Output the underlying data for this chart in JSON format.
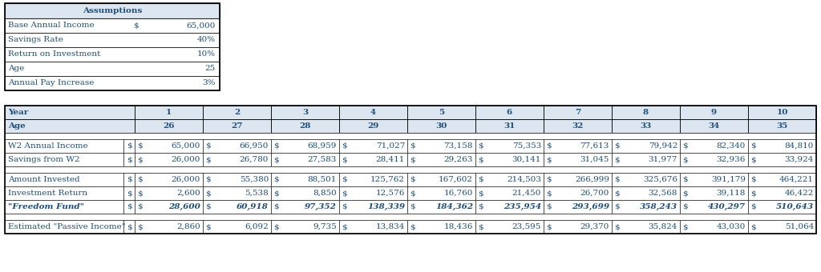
{
  "assumptions_title": "Assumptions",
  "assumptions": [
    [
      "Base Annual Income",
      "$",
      "65,000"
    ],
    [
      "Savings Rate",
      "",
      "40%"
    ],
    [
      "Return on Investment",
      "",
      "10%"
    ],
    [
      "Age",
      "",
      "25"
    ],
    [
      "Annual Pay Increase",
      "",
      "3%"
    ]
  ],
  "header_bg": "#dce6f1",
  "text_color": "#1f4e79",
  "border_color": "#000000",
  "years": [
    "1",
    "2",
    "3",
    "4",
    "5",
    "6",
    "7",
    "8",
    "9",
    "10"
  ],
  "ages": [
    "26",
    "27",
    "28",
    "29",
    "30",
    "31",
    "32",
    "33",
    "34",
    "35"
  ],
  "rows": [
    {
      "label": "W2 Annual Income",
      "bold": false,
      "italic": false,
      "values": [
        "65,000",
        "66,950",
        "68,959",
        "71,027",
        "73,158",
        "75,353",
        "77,613",
        "79,942",
        "82,340",
        "84,810"
      ]
    },
    {
      "label": "Savings from W2",
      "bold": false,
      "italic": false,
      "values": [
        "26,000",
        "26,780",
        "27,583",
        "28,411",
        "29,263",
        "30,141",
        "31,045",
        "31,977",
        "32,936",
        "33,924"
      ]
    },
    {
      "label": "Amount Invested",
      "bold": false,
      "italic": false,
      "values": [
        "26,000",
        "55,380",
        "88,501",
        "125,762",
        "167,602",
        "214,503",
        "266,999",
        "325,676",
        "391,179",
        "464,221"
      ]
    },
    {
      "label": "Investment Return",
      "bold": false,
      "italic": false,
      "values": [
        "2,600",
        "5,538",
        "8,850",
        "12,576",
        "16,760",
        "21,450",
        "26,700",
        "32,568",
        "39,118",
        "46,422"
      ]
    },
    {
      "label": "\"Freedom Fund\"",
      "bold": true,
      "italic": true,
      "values": [
        "28,600",
        "60,918",
        "97,352",
        "138,339",
        "184,362",
        "235,954",
        "293,699",
        "358,243",
        "430,297",
        "510,643"
      ]
    },
    {
      "label": "Estimated \"Passive Income\"",
      "bold": false,
      "italic": false,
      "values": [
        "2,860",
        "6,092",
        "9,735",
        "13,834",
        "18,436",
        "23,595",
        "29,370",
        "35,824",
        "43,030",
        "51,064"
      ]
    }
  ],
  "row_groups": [
    [
      0,
      1
    ],
    [
      2,
      3,
      4
    ],
    [
      5
    ]
  ]
}
